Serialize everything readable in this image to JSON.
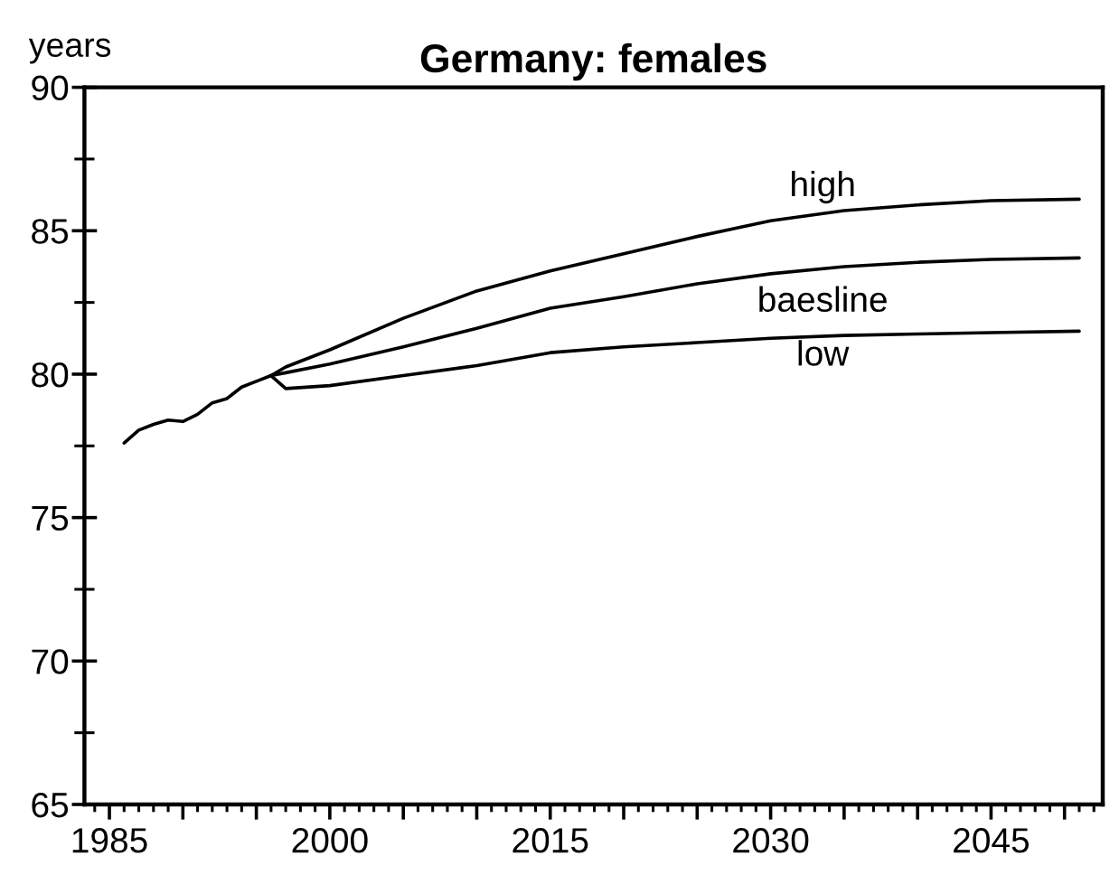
{
  "chart_data": {
    "type": "line",
    "title": "Germany: females",
    "ylabel": "years",
    "series": [
      {
        "name": "high",
        "color": "#000000",
        "x": [
          1996,
          1997,
          2000,
          2005,
          2010,
          2015,
          2020,
          2025,
          2030,
          2035,
          2040,
          2045,
          2051
        ],
        "values": [
          79.95,
          80.25,
          80.85,
          81.95,
          82.9,
          83.6,
          84.2,
          84.8,
          85.35,
          85.7,
          85.9,
          86.05,
          86.1
        ]
      },
      {
        "name": "baesline",
        "color": "#000000",
        "x": [
          1986,
          1987,
          1988,
          1989,
          1990,
          1991,
          1992,
          1993,
          1994,
          1995,
          1996,
          1997,
          2000,
          2005,
          2010,
          2015,
          2020,
          2025,
          2030,
          2035,
          2040,
          2045,
          2051
        ],
        "values": [
          77.6,
          78.05,
          78.25,
          78.4,
          78.35,
          78.6,
          79.0,
          79.15,
          79.55,
          79.75,
          79.95,
          80.05,
          80.35,
          80.95,
          81.6,
          82.3,
          82.7,
          83.15,
          83.5,
          83.75,
          83.9,
          84.0,
          84.05
        ]
      },
      {
        "name": "low",
        "color": "#000000",
        "x": [
          1996,
          1997,
          2000,
          2005,
          2010,
          2015,
          2020,
          2025,
          2030,
          2035,
          2040,
          2045,
          2051
        ],
        "values": [
          79.95,
          79.5,
          79.6,
          79.95,
          80.3,
          80.75,
          80.95,
          81.1,
          81.25,
          81.35,
          81.4,
          81.45,
          81.5
        ]
      }
    ],
    "xlim": [
      1983.3,
      2052.6
    ],
    "xticks": [
      1985,
      {
        "value": 1990,
        "label": null
      },
      {
        "value": 1995,
        "label": null
      },
      2000,
      {
        "value": 2005,
        "label": null
      },
      {
        "value": 2010,
        "label": null
      },
      2015,
      {
        "value": 2020,
        "label": null
      },
      {
        "value": 2025,
        "label": null
      },
      2030,
      {
        "value": 2035,
        "label": null
      },
      {
        "value": 2040,
        "label": null
      },
      2045,
      {
        "value": 2050,
        "label": null
      }
    ],
    "ylim": [
      65,
      90
    ],
    "yticks": [
      65,
      70,
      75,
      80,
      85,
      90
    ],
    "grid": false,
    "legend": false,
    "marker": "none",
    "line_style": "solid"
  }
}
